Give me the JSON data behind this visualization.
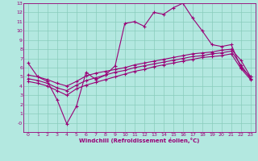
{
  "xlabel": "Windchill (Refroidissement éolien,°C)",
  "bg_color": "#b3e8e0",
  "line_color": "#990077",
  "grid_color": "#88ccbb",
  "xlim": [
    -0.5,
    23.5
  ],
  "ylim": [
    -1,
    13
  ],
  "xticks": [
    0,
    1,
    2,
    3,
    4,
    5,
    6,
    7,
    8,
    9,
    10,
    11,
    12,
    13,
    14,
    15,
    16,
    17,
    18,
    19,
    20,
    21,
    22,
    23
  ],
  "yticks": [
    0,
    1,
    2,
    3,
    4,
    5,
    6,
    7,
    8,
    9,
    10,
    11,
    12,
    13
  ],
  "ytick_labels": [
    "-0",
    "1",
    "2",
    "3",
    "4",
    "5",
    "6",
    "7",
    "8",
    "9",
    "10",
    "11",
    "12",
    "13"
  ],
  "series1_x": [
    0,
    1,
    2,
    3,
    4,
    5,
    6,
    7,
    8,
    9,
    10,
    11,
    12,
    13,
    14,
    15,
    16,
    17,
    18,
    19,
    20,
    21,
    22,
    23
  ],
  "series1_y": [
    6.5,
    5.0,
    4.5,
    2.5,
    -0.1,
    1.8,
    5.5,
    4.7,
    5.2,
    6.2,
    10.8,
    11.0,
    10.5,
    12.0,
    11.8,
    12.5,
    13.0,
    11.4,
    10.0,
    8.5,
    8.3,
    8.5,
    6.0,
    5.0
  ],
  "series2_x": [
    0,
    1,
    2,
    3,
    4,
    5,
    6,
    7,
    8,
    9,
    10,
    11,
    12,
    13,
    14,
    15,
    16,
    17,
    18,
    19,
    20,
    21,
    22,
    23
  ],
  "series2_y": [
    5.2,
    5.0,
    4.7,
    4.3,
    4.0,
    4.5,
    5.1,
    5.4,
    5.6,
    5.8,
    6.0,
    6.3,
    6.5,
    6.7,
    6.9,
    7.1,
    7.3,
    7.5,
    7.6,
    7.7,
    7.9,
    8.0,
    6.8,
    5.0
  ],
  "series3_x": [
    0,
    1,
    2,
    3,
    4,
    5,
    6,
    7,
    8,
    9,
    10,
    11,
    12,
    13,
    14,
    15,
    16,
    17,
    18,
    19,
    20,
    21,
    22,
    23
  ],
  "series3_y": [
    4.8,
    4.6,
    4.3,
    3.8,
    3.5,
    4.1,
    4.6,
    4.9,
    5.2,
    5.5,
    5.7,
    6.0,
    6.2,
    6.4,
    6.6,
    6.8,
    7.0,
    7.2,
    7.3,
    7.5,
    7.6,
    7.8,
    6.3,
    4.8
  ],
  "series4_x": [
    0,
    1,
    2,
    3,
    4,
    5,
    6,
    7,
    8,
    9,
    10,
    11,
    12,
    13,
    14,
    15,
    16,
    17,
    18,
    19,
    20,
    21,
    22,
    23
  ],
  "series4_y": [
    4.5,
    4.3,
    4.0,
    3.5,
    3.0,
    3.7,
    4.1,
    4.4,
    4.7,
    5.0,
    5.3,
    5.6,
    5.8,
    6.1,
    6.3,
    6.5,
    6.7,
    6.9,
    7.1,
    7.2,
    7.3,
    7.5,
    5.9,
    4.7
  ]
}
